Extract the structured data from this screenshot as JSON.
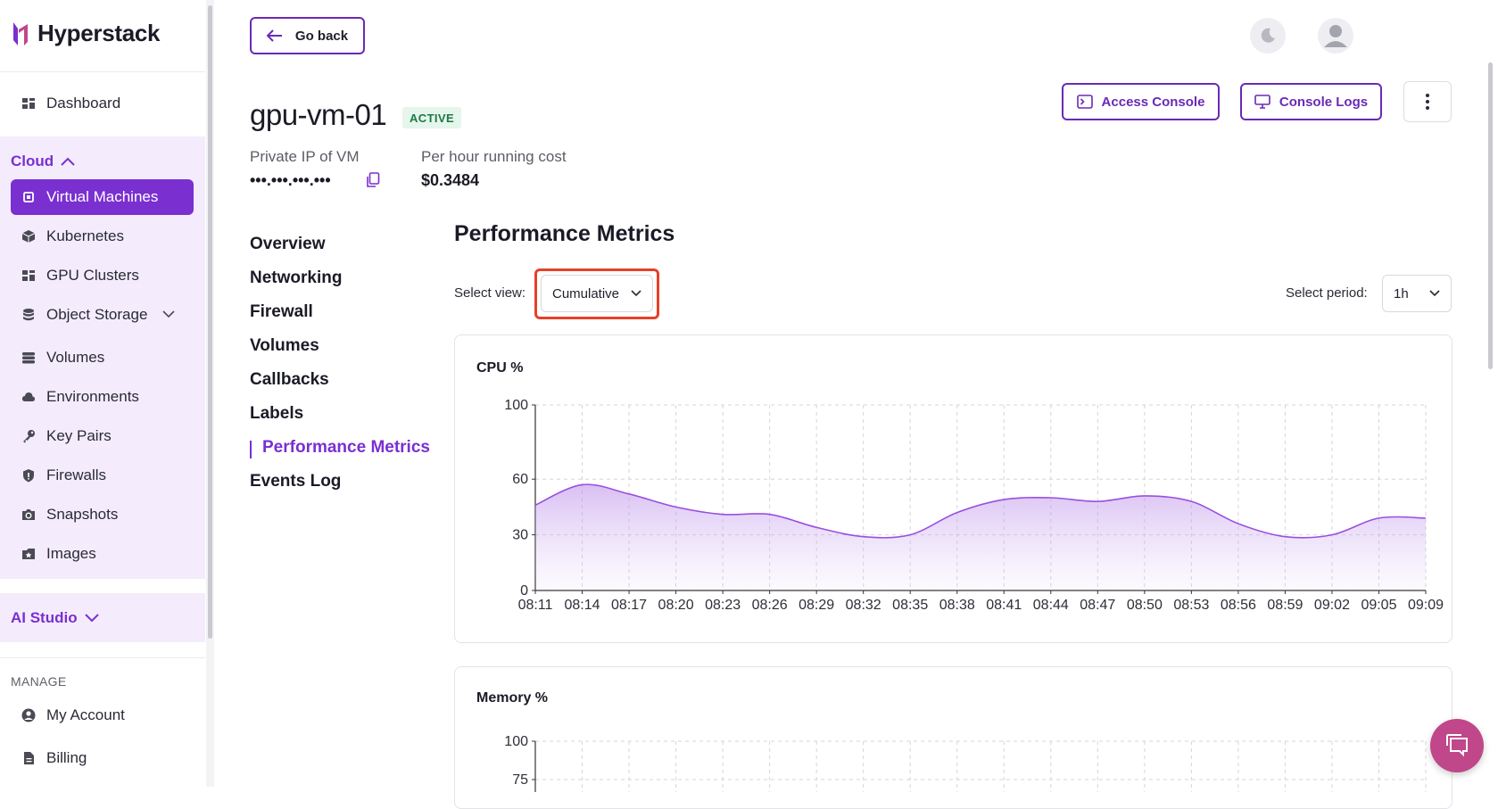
{
  "app": {
    "name": "Hyperstack"
  },
  "sidebar": {
    "dashboard": "Dashboard",
    "cloud_label": "Cloud",
    "cloud_items": [
      {
        "label": "Virtual Machines",
        "icon": "chip-icon",
        "active": true
      },
      {
        "label": "Kubernetes",
        "icon": "cube-icon"
      },
      {
        "label": "GPU Clusters",
        "icon": "grid-icon"
      },
      {
        "label": "Object Storage",
        "icon": "database-icon",
        "expandable": true
      },
      {
        "label": "Volumes",
        "icon": "stack-icon"
      },
      {
        "label": "Environments",
        "icon": "cloud-icon"
      },
      {
        "label": "Key Pairs",
        "icon": "key-icon"
      },
      {
        "label": "Firewalls",
        "icon": "shield-icon"
      },
      {
        "label": "Snapshots",
        "icon": "camera-icon"
      },
      {
        "label": "Images",
        "icon": "image-icon"
      }
    ],
    "ai_studio_label": "AI Studio",
    "manage_label": "MANAGE",
    "manage_items": [
      {
        "label": "My Account",
        "icon": "user-circle-icon"
      },
      {
        "label": "Billing",
        "icon": "document-icon"
      }
    ]
  },
  "topbar": {
    "go_back": "Go back"
  },
  "vm": {
    "name": "gpu-vm-01",
    "status": "ACTIVE",
    "private_ip_label": "Private IP of VM",
    "private_ip_value": "•••.•••.•••.•••",
    "cost_label": "Per hour running cost",
    "cost_value": "$0.3484"
  },
  "actions": {
    "access_console": "Access Console",
    "console_logs": "Console Logs"
  },
  "subnav": [
    "Overview",
    "Networking",
    "Firewall",
    "Volumes",
    "Callbacks",
    "Labels",
    "Performance Metrics",
    "Events Log"
  ],
  "subnav_active": "Performance Metrics",
  "metrics": {
    "title": "Performance Metrics",
    "select_view_label": "Select view:",
    "select_view_value": "Cumulative",
    "select_period_label": "Select period:",
    "select_period_value": "1h"
  },
  "colors": {
    "accent": "#7a2fd0",
    "highlight": "#e6412a",
    "status_bg": "#e5f6ec",
    "status_fg": "#1d7a45"
  },
  "chart_data": [
    {
      "type": "area",
      "title": "CPU %",
      "x": [
        "08:11",
        "08:14",
        "08:17",
        "08:20",
        "08:23",
        "08:26",
        "08:29",
        "08:32",
        "08:35",
        "08:38",
        "08:41",
        "08:44",
        "08:47",
        "08:50",
        "08:53",
        "08:56",
        "08:59",
        "09:02",
        "09:05",
        "09:09"
      ],
      "series": [
        {
          "values": [
            46,
            57,
            52,
            45,
            41,
            41,
            34,
            29,
            30,
            42,
            49,
            50,
            48,
            51,
            48,
            36,
            29,
            30,
            39,
            39
          ]
        }
      ],
      "yticks": [
        0,
        30,
        60,
        100
      ],
      "ylim": [
        0,
        100
      ],
      "grid": true
    },
    {
      "type": "area",
      "title": "Memory %",
      "yticks": [
        75,
        100
      ],
      "ylim": [
        0,
        100
      ],
      "grid": true
    }
  ]
}
